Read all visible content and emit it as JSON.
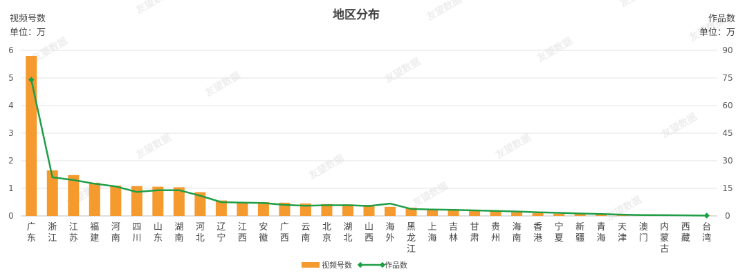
{
  "chart_data": {
    "type": "bar+line",
    "title": "地区分布",
    "left_axis": {
      "label": "视频号数",
      "unit": "单位：万",
      "ylim": [
        0,
        6
      ],
      "ticks": [
        0,
        1,
        2,
        3,
        4,
        5,
        6
      ]
    },
    "right_axis": {
      "label": "作品数",
      "unit": "单位：万",
      "ylim": [
        0,
        90
      ],
      "ticks": [
        0,
        15,
        30,
        45,
        60,
        75,
        90
      ]
    },
    "categories": [
      "广东",
      "浙江",
      "江苏",
      "福建",
      "河南",
      "四川",
      "山东",
      "湖南",
      "河北",
      "辽宁",
      "江西",
      "安徽",
      "广西",
      "云南",
      "北京",
      "湖北",
      "山西",
      "海外",
      "黑龙江",
      "上海",
      "吉林",
      "甘肃",
      "贵州",
      "海南",
      "香港",
      "宁夏",
      "新疆",
      "青海",
      "天津",
      "澳门",
      "内蒙古",
      "西藏",
      "台湾"
    ],
    "series": [
      {
        "name": "视频号数",
        "type": "bar",
        "axis": "left",
        "color": "#F59A2F",
        "values": [
          5.8,
          1.65,
          1.48,
          1.2,
          1.1,
          1.08,
          1.06,
          1.04,
          0.86,
          0.56,
          0.5,
          0.5,
          0.48,
          0.45,
          0.43,
          0.42,
          0.4,
          0.33,
          0.3,
          0.25,
          0.24,
          0.22,
          0.17,
          0.13,
          0.1,
          0.08,
          0.07,
          0.05,
          0.04,
          0.03,
          0.02,
          0.02,
          0.01
        ]
      },
      {
        "name": "作品数",
        "type": "line",
        "axis": "right",
        "color": "#1E9E45",
        "values": [
          74,
          21,
          19.5,
          17.5,
          16,
          13,
          14,
          14,
          11,
          7.5,
          7.2,
          7,
          6,
          5.5,
          5.8,
          5.8,
          5.4,
          6.7,
          3.8,
          3.5,
          3.3,
          3,
          2.7,
          2.4,
          2,
          1.7,
          1.3,
          1,
          0.7,
          0.5,
          0.4,
          0.3,
          0.2
        ]
      }
    ],
    "grid": true,
    "legend_position": "bottom-center"
  },
  "watermark": "友望数据"
}
